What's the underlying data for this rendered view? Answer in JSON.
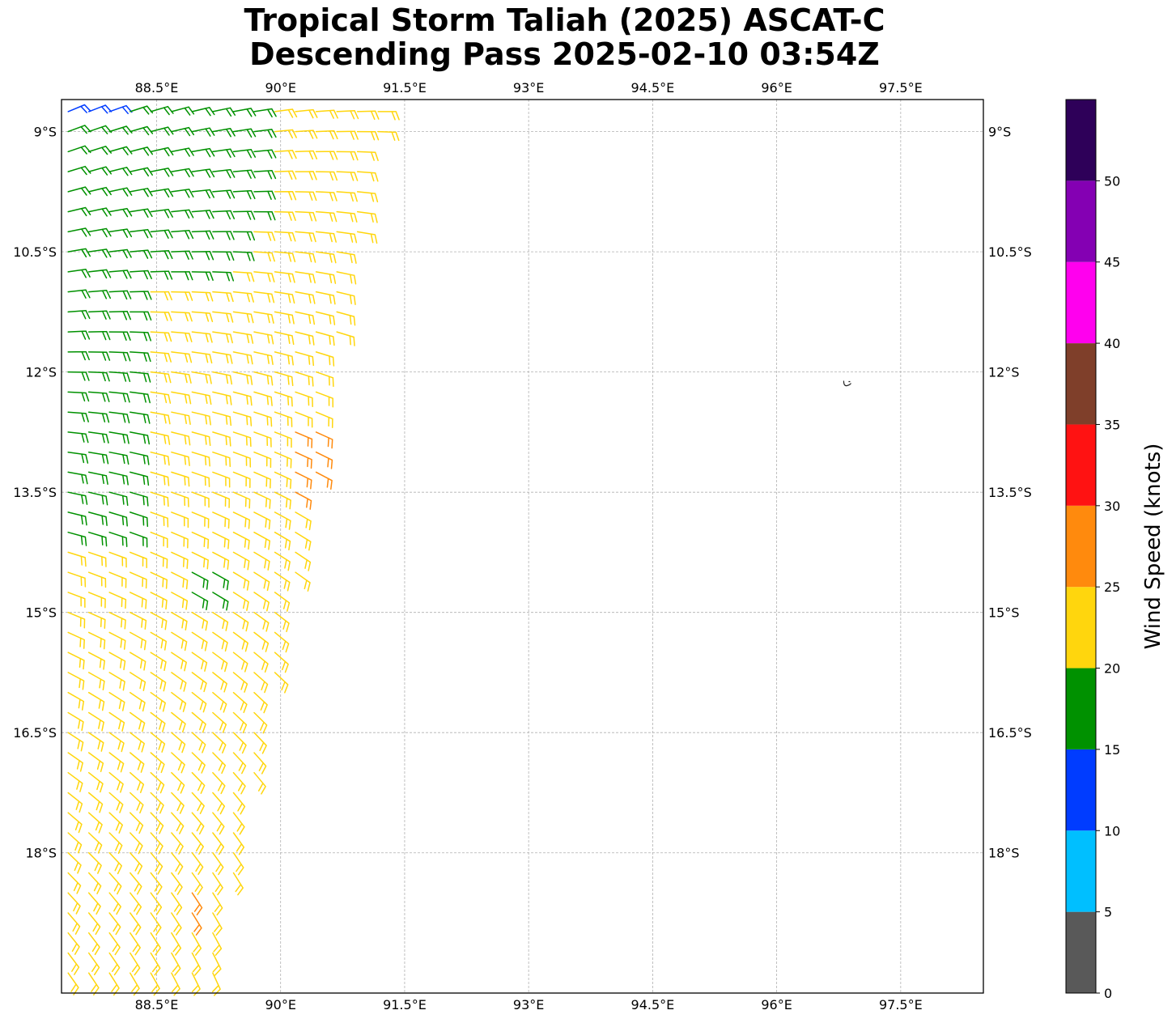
{
  "title": {
    "line1": "Tropical Storm Taliah (2025) ASCAT-C",
    "line2": "Descending Pass 2025-02-10 03:54Z"
  },
  "chart_data": {
    "type": "wind_barb_map",
    "title": "Tropical Storm Taliah (2025) ASCAT-C Descending Pass 2025-02-10 03:54Z",
    "xlim": [
      87.35,
      98.5
    ],
    "ylim": [
      -19.75,
      -8.6
    ],
    "x_ticks": [
      {
        "value": 88.5,
        "label": "88.5°E"
      },
      {
        "value": 90.0,
        "label": "90°E"
      },
      {
        "value": 91.5,
        "label": "91.5°E"
      },
      {
        "value": 93.0,
        "label": "93°E"
      },
      {
        "value": 94.5,
        "label": "94.5°E"
      },
      {
        "value": 96.0,
        "label": "96°E"
      },
      {
        "value": 97.5,
        "label": "97.5°E"
      }
    ],
    "y_ticks": [
      {
        "value": -9.0,
        "label": "9°S"
      },
      {
        "value": -10.5,
        "label": "10.5°S"
      },
      {
        "value": -12.0,
        "label": "12°S"
      },
      {
        "value": -13.5,
        "label": "13.5°S"
      },
      {
        "value": -15.0,
        "label": "15°S"
      },
      {
        "value": -16.5,
        "label": "16.5°S"
      },
      {
        "value": -18.0,
        "label": "18°S"
      }
    ],
    "grid": true,
    "colorbar": {
      "label": "Wind Speed (knots)",
      "bounds": [
        0,
        5,
        10,
        15,
        20,
        25,
        30,
        35,
        40,
        45,
        50,
        55
      ],
      "tick_labels": [
        "0",
        "5",
        "10",
        "15",
        "20",
        "25",
        "30",
        "35",
        "40",
        "45",
        "50"
      ],
      "colors": [
        "#595959",
        "#00bfff",
        "#003cff",
        "#009100",
        "#ffd60d",
        "#ff8a0d",
        "#ff1212",
        "#7f3f2a",
        "#ff00ee",
        "#8400b3",
        "#2e0059"
      ]
    },
    "swath": {
      "description": "ASCAT-C descending pass wind barbs on the western part of the map",
      "west_edge_lon": 87.35,
      "east_edge": [
        {
          "lat": -8.6,
          "lon": 91.3
        },
        {
          "lat": -9.5,
          "lon": 91.1
        },
        {
          "lat": -10.5,
          "lon": 90.9
        },
        {
          "lat": -12.0,
          "lon": 90.6
        },
        {
          "lat": -13.0,
          "lon": 90.5
        },
        {
          "lat": -14.5,
          "lon": 90.2
        },
        {
          "lat": -15.5,
          "lon": 90.0
        },
        {
          "lat": -17.0,
          "lon": 89.7
        },
        {
          "lat": -18.0,
          "lon": 89.5
        },
        {
          "lat": -19.75,
          "lon": 89.2
        }
      ],
      "regions": [
        {
          "speed_kt": "15-20",
          "color": "#009100",
          "area": "north-west, lat -8.6 to -11, lon 87.35 to 90.3"
        },
        {
          "speed_kt": "15-20",
          "color": "#009100",
          "area": "west strip, lat -11 to -14.1, lon 87.35 to 88.4"
        },
        {
          "speed_kt": "10-15",
          "color": "#003cff",
          "area": "north-west corner near 87.6E 8.8S"
        },
        {
          "speed_kt": "25-30",
          "color": "#ff8a0d",
          "area": "eastern swath edge, lat -12.6 to -13.7, lon 90.0 to 90.5"
        },
        {
          "speed_kt": "25-30",
          "color": "#ff8a0d",
          "area": "south, near 88.9E 18.5S"
        },
        {
          "speed_kt": "20-25",
          "color": "#ffd60d",
          "area": "rest of swath"
        }
      ]
    },
    "island_marker": {
      "lon": 96.85,
      "lat": -12.15
    }
  }
}
